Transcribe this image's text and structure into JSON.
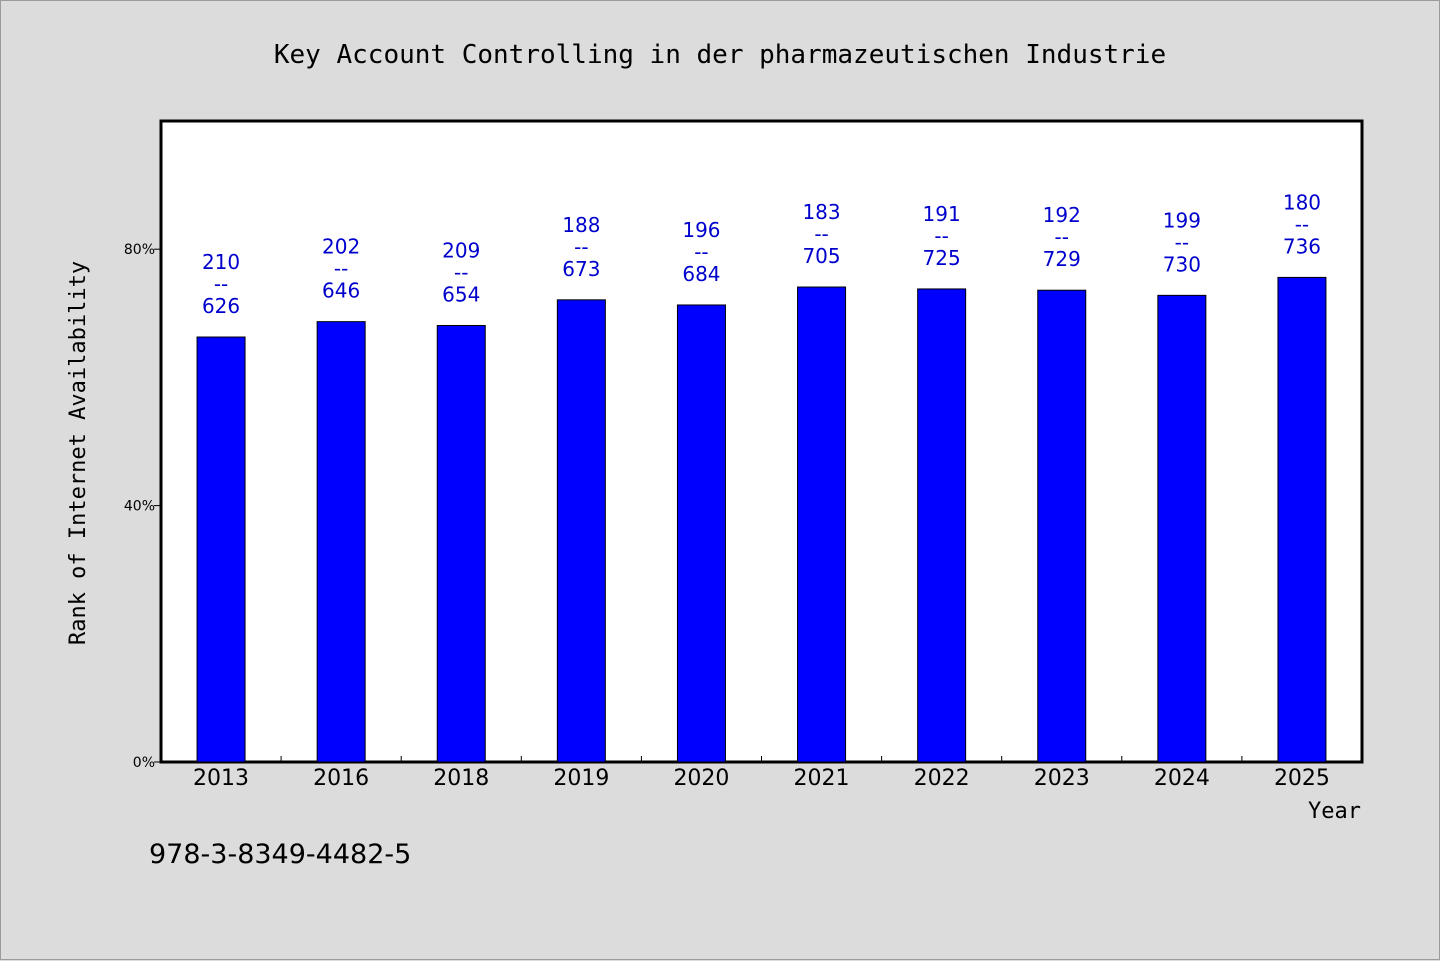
{
  "chart_data": {
    "type": "bar",
    "title": "Key Account Controlling in der pharmazeutischen Industrie",
    "xlabel": "Year",
    "ylabel": "Rank of Internet Availability",
    "categories": [
      "2013",
      "2016",
      "2018",
      "2019",
      "2020",
      "2021",
      "2022",
      "2023",
      "2024",
      "2025"
    ],
    "values": [
      66.3,
      68.7,
      68.1,
      72.1,
      71.3,
      74.1,
      73.8,
      73.6,
      72.8,
      75.6
    ],
    "ylim": [
      0,
      100
    ],
    "yticks": [
      {
        "value": 0,
        "label": "0%"
      },
      {
        "value": 40,
        "label": "40%"
      },
      {
        "value": 80,
        "label": "80%"
      }
    ],
    "data_labels": [
      {
        "top": "210",
        "sep": "--",
        "bottom": "626"
      },
      {
        "top": "202",
        "sep": "--",
        "bottom": "646"
      },
      {
        "top": "209",
        "sep": "--",
        "bottom": "654"
      },
      {
        "top": "188",
        "sep": "--",
        "bottom": "673"
      },
      {
        "top": "196",
        "sep": "--",
        "bottom": "684"
      },
      {
        "top": "183",
        "sep": "--",
        "bottom": "705"
      },
      {
        "top": "191",
        "sep": "--",
        "bottom": "725"
      },
      {
        "top": "192",
        "sep": "--",
        "bottom": "729"
      },
      {
        "top": "199",
        "sep": "--",
        "bottom": "730"
      },
      {
        "top": "180",
        "sep": "--",
        "bottom": "736"
      }
    ],
    "grid": false,
    "bar_color": "#0000ff",
    "label_color": "#0000cc"
  },
  "footer": {
    "isbn": "978-3-8349-4482-5"
  }
}
